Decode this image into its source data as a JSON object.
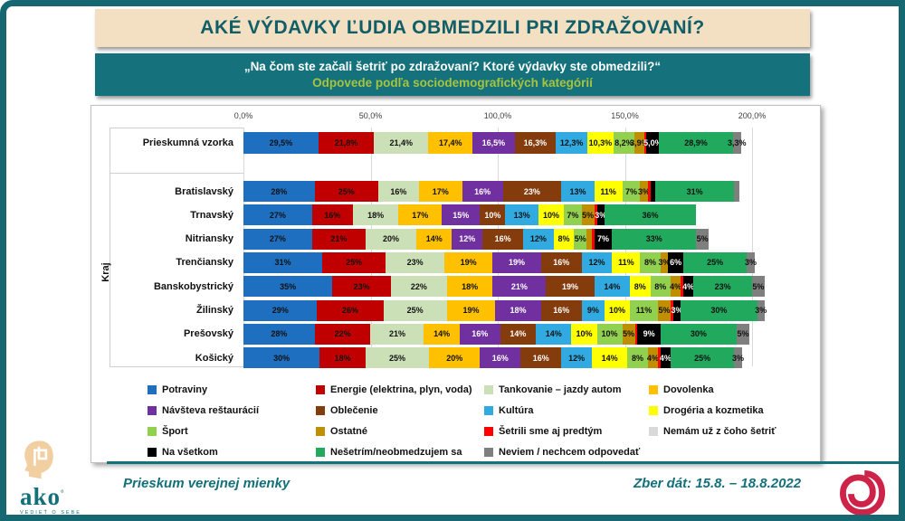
{
  "page": {
    "title": "AKÉ VÝDAVKY ĽUDIA OBMEDZILI PRI ZDRAŽOVANÍ?",
    "subtitle_line1": "„Na čom ste začali šetriť po zdražovaní? Ktoré výdavky ste obmedzili?“",
    "subtitle_line2": "Odpovede podľa sociodemografických kategórií",
    "footer": {
      "left_text": "Prieskum verejnej mienky",
      "right_text": "Zber dát: 15.8. – 18.8.2022",
      "logo_text": "ako",
      "logo_sub": "VEDIEŤ O SEBE"
    },
    "theme": {
      "frame_teal": "#156872",
      "banner_cream": "#F3DFC1",
      "banner_teal": "#15717B",
      "title_text": "#0F5E68",
      "subtitle_accent": "#A6C43D",
      "footer_text": "#13707B",
      "spiral_logo": "#CE2349",
      "head_logo": "#F2CFA0"
    }
  },
  "chart_data": {
    "type": "bar",
    "variant": "horizontal-stacked",
    "title": "AKÉ VÝDAVKY ĽUDIA OBMEDZILI PRI ZDRAŽOVANÍ?",
    "x_axis": {
      "ticks": [
        "0,0%",
        "50,0%",
        "100,0%",
        "150,0%",
        "200,0%"
      ],
      "max_percent": 200,
      "grid": true
    },
    "y_axis_group_label": "Kraj",
    "legend_position": "bottom",
    "categories": [
      {
        "name": "Potraviny",
        "color": "#1F6FC0",
        "text": "dark"
      },
      {
        "name": "Energie (elektrina, plyn, voda)",
        "color": "#C00000",
        "text": "dark"
      },
      {
        "name": "Tankovanie – jazdy autom",
        "color": "#CCE0B8",
        "text": "dark"
      },
      {
        "name": "Dovolenka",
        "color": "#FFC000",
        "text": "dark"
      },
      {
        "name": "Návšteva reštaurácií",
        "color": "#7030A0",
        "text": "light"
      },
      {
        "name": "Oblečenie",
        "color": "#843C0C",
        "text": "light"
      },
      {
        "name": "Kultúra",
        "color": "#31AAE1",
        "text": "dark"
      },
      {
        "name": "Drogéria a kozmetika",
        "color": "#FFFF00",
        "text": "dark"
      },
      {
        "name": "Šport",
        "color": "#92D050",
        "text": "dark"
      },
      {
        "name": "Ostatné",
        "color": "#BF8F00",
        "text": "dark"
      },
      {
        "name": "Šetrili sme aj predtým",
        "color": "#FF0000",
        "text": "dark"
      },
      {
        "name": "Nemám už z čoho šetriť",
        "color": "#D9D9D9",
        "text": "dark"
      },
      {
        "name": "Na všetkom",
        "color": "#000000",
        "text": "light"
      },
      {
        "name": "Nešetrím/neobmedzujem sa",
        "color": "#21A95D",
        "text": "dark"
      },
      {
        "name": "Neviem / nechcem odpovedať",
        "color": "#7F7F7F",
        "text": "dark"
      }
    ],
    "rows": [
      {
        "label": "Prieskumná vzorka",
        "group": null,
        "values": [
          29.5,
          21.8,
          21.4,
          17.4,
          16.5,
          16.3,
          12.3,
          10.3,
          8.2,
          3.9,
          0.9,
          0,
          5.0,
          28.9,
          3.3
        ],
        "segment_labels": [
          "29,5%",
          "21,8%",
          "21,4%",
          "17,4%",
          "16,5%",
          "16,3%",
          "12,3%",
          "10,3%",
          "8,2%",
          "3,9%",
          "",
          "",
          "5,0%",
          "28,9%",
          "3,3%"
        ]
      },
      {
        "label": "Bratislavský",
        "group": "Kraj",
        "values": [
          28,
          25,
          16,
          17,
          16,
          23,
          13,
          11,
          7,
          3,
          1,
          0,
          2,
          31,
          2
        ],
        "segment_labels": [
          "28%",
          "25%",
          "16%",
          "17%",
          "16%",
          "23%",
          "13%",
          "11%",
          "7%",
          "3%",
          "",
          "",
          "",
          "31%",
          ""
        ]
      },
      {
        "label": "Trnavský",
        "group": "Kraj",
        "values": [
          27,
          16,
          18,
          17,
          15,
          10,
          13,
          10,
          7,
          5,
          1,
          0,
          3,
          36,
          0
        ],
        "segment_labels": [
          "27%",
          "16%",
          "18%",
          "17%",
          "15%",
          "10%",
          "13%",
          "10%",
          "7%",
          "5%",
          "",
          "",
          "3%",
          "36%",
          ""
        ]
      },
      {
        "label": "Nitriansky",
        "group": "Kraj",
        "values": [
          27,
          21,
          20,
          14,
          12,
          16,
          12,
          8,
          5,
          2,
          1,
          0,
          7,
          33,
          5
        ],
        "segment_labels": [
          "27%",
          "21%",
          "20%",
          "14%",
          "12%",
          "16%",
          "12%",
          "8%",
          "5%",
          "",
          "",
          "",
          "7%",
          "33%",
          "5%"
        ]
      },
      {
        "label": "Trenčiansky",
        "group": "Kraj",
        "values": [
          31,
          25,
          23,
          19,
          19,
          16,
          12,
          11,
          8,
          3,
          0,
          0,
          6,
          25,
          3
        ],
        "segment_labels": [
          "31%",
          "25%",
          "23%",
          "19%",
          "19%",
          "16%",
          "12%",
          "11%",
          "8%",
          "3%",
          "",
          "",
          "6%",
          "25%",
          "3%"
        ]
      },
      {
        "label": "Banskobystrický",
        "group": "Kraj",
        "values": [
          35,
          23,
          22,
          18,
          21,
          19,
          14,
          8,
          8,
          4,
          1,
          0,
          4,
          23,
          5
        ],
        "segment_labels": [
          "35%",
          "23%",
          "22%",
          "18%",
          "21%",
          "19%",
          "14%",
          "8%",
          "8%",
          "4%",
          "",
          "",
          "4%",
          "23%",
          "5%"
        ]
      },
      {
        "label": "Žilinský",
        "group": "Kraj",
        "values": [
          29,
          26,
          25,
          19,
          18,
          16,
          9,
          10,
          11,
          5,
          1,
          0,
          3,
          30,
          3
        ],
        "segment_labels": [
          "29%",
          "26%",
          "25%",
          "19%",
          "18%",
          "16%",
          "9%",
          "10%",
          "11%",
          "5%",
          "",
          "",
          "3%",
          "30%",
          "3%"
        ]
      },
      {
        "label": "Prešovský",
        "group": "Kraj",
        "values": [
          28,
          22,
          21,
          14,
          16,
          14,
          14,
          10,
          10,
          5,
          1,
          0,
          9,
          30,
          5
        ],
        "segment_labels": [
          "28%",
          "22%",
          "21%",
          "14%",
          "16%",
          "14%",
          "14%",
          "10%",
          "10%",
          "5%",
          "",
          "",
          "9%",
          "30%",
          "5%"
        ]
      },
      {
        "label": "Košický",
        "group": "Kraj",
        "values": [
          30,
          18,
          25,
          20,
          16,
          16,
          12,
          14,
          8,
          4,
          1,
          0,
          4,
          25,
          3
        ],
        "segment_labels": [
          "30%",
          "18%",
          "25%",
          "20%",
          "16%",
          "16%",
          "12%",
          "14%",
          "8%",
          "4%",
          "",
          "",
          "4%",
          "25%",
          "3%"
        ]
      }
    ]
  }
}
